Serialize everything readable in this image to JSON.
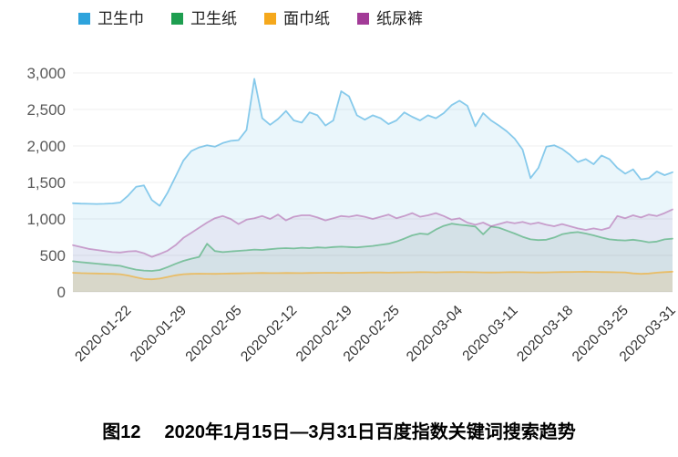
{
  "figure": {
    "caption_label": "图12",
    "caption_text": "2020年1月15日—3月31日百度指数关键词搜索趋势"
  },
  "axis_style": {
    "y_label_color": "#595959",
    "x_label_color": "#333333",
    "grid_color": "#efefef"
  },
  "chart_data": {
    "type": "area",
    "title": "",
    "xlabel": "",
    "ylabel": "",
    "x_start_date": "2020-01-15",
    "x_end_date": "2020-03-31",
    "x_tick_labels": [
      "2020-01-22",
      "2020-01-29",
      "2020-02-05",
      "2020-02-12",
      "2020-02-19",
      "2020-02-25",
      "2020-03-04",
      "2020-03-11",
      "2020-03-18",
      "2020-03-25",
      "2020-03-31"
    ],
    "x_tick_indices": [
      7,
      14,
      21,
      28,
      35,
      41,
      49,
      56,
      63,
      70,
      76
    ],
    "ylim": [
      0,
      3000
    ],
    "y_ticks": [
      0,
      500,
      1000,
      1500,
      2000,
      2500,
      3000
    ],
    "y_tick_labels": [
      "0",
      "500",
      "1,000",
      "1,500",
      "2,000",
      "2,500",
      "3,000"
    ],
    "grid": true,
    "legend_position": "top-left",
    "series": [
      {
        "name": "卫生巾",
        "semantic": "sanitary-napkin",
        "color": "#2EA3DC",
        "line_color": "rgba(46,163,220,0.55)",
        "fill_color": "rgba(46,163,220,0.10)",
        "values": [
          1215,
          1210,
          1208,
          1205,
          1208,
          1212,
          1225,
          1320,
          1440,
          1460,
          1260,
          1180,
          1360,
          1580,
          1800,
          1930,
          1980,
          2010,
          1990,
          2040,
          2070,
          2080,
          2220,
          2920,
          2380,
          2290,
          2370,
          2480,
          2350,
          2320,
          2460,
          2420,
          2280,
          2350,
          2750,
          2680,
          2420,
          2360,
          2420,
          2380,
          2300,
          2350,
          2460,
          2400,
          2350,
          2420,
          2380,
          2450,
          2560,
          2620,
          2550,
          2270,
          2450,
          2350,
          2280,
          2200,
          2100,
          1950,
          1560,
          1700,
          1990,
          2010,
          1960,
          1880,
          1780,
          1820,
          1750,
          1870,
          1820,
          1700,
          1620,
          1680,
          1540,
          1560,
          1650,
          1600,
          1640
        ]
      },
      {
        "name": "卫生纸",
        "semantic": "toilet-paper",
        "color": "#1E9E50",
        "line_color": "rgba(30,158,80,0.50)",
        "fill_color": "rgba(30,158,80,0.08)",
        "values": [
          420,
          408,
          398,
          388,
          378,
          368,
          358,
          330,
          305,
          292,
          288,
          300,
          340,
          385,
          425,
          455,
          480,
          660,
          560,
          545,
          555,
          562,
          570,
          580,
          575,
          585,
          595,
          600,
          595,
          605,
          600,
          610,
          605,
          615,
          620,
          615,
          610,
          620,
          630,
          645,
          660,
          690,
          730,
          775,
          800,
          790,
          855,
          905,
          935,
          920,
          910,
          895,
          790,
          895,
          880,
          840,
          800,
          755,
          720,
          710,
          715,
          745,
          790,
          810,
          820,
          800,
          775,
          745,
          720,
          710,
          705,
          715,
          700,
          680,
          690,
          720,
          730
        ]
      },
      {
        "name": "面巾纸",
        "semantic": "facial-tissue",
        "color": "#F5A81C",
        "line_color": "rgba(245,168,28,0.60)",
        "fill_color": "rgba(245,168,28,0.15)",
        "values": [
          262,
          258,
          255,
          252,
          250,
          247,
          243,
          225,
          200,
          178,
          172,
          182,
          205,
          228,
          242,
          248,
          250,
          249,
          248,
          250,
          252,
          254,
          256,
          258,
          260,
          258,
          257,
          260,
          259,
          258,
          260,
          261,
          263,
          262,
          260,
          262,
          263,
          265,
          267,
          266,
          264,
          266,
          267,
          269,
          271,
          270,
          268,
          270,
          271,
          273,
          271,
          270,
          268,
          266,
          268,
          270,
          271,
          270,
          268,
          266,
          268,
          270,
          272,
          273,
          275,
          277,
          275,
          273,
          271,
          269,
          267,
          254,
          247,
          252,
          264,
          271,
          277
        ]
      },
      {
        "name": "纸尿裤",
        "semantic": "diaper",
        "color": "#A23B97",
        "line_color": "rgba(162,59,151,0.45)",
        "fill_color": "rgba(162,59,151,0.07)",
        "values": [
          640,
          615,
          590,
          575,
          560,
          545,
          540,
          555,
          560,
          530,
          480,
          520,
          565,
          640,
          740,
          810,
          880,
          950,
          1010,
          1040,
          1000,
          930,
          990,
          1010,
          1040,
          1000,
          1060,
          980,
          1030,
          1050,
          1050,
          1020,
          980,
          1010,
          1040,
          1030,
          1050,
          1030,
          1000,
          1030,
          1060,
          1010,
          1040,
          1080,
          1030,
          1050,
          1080,
          1040,
          990,
          1010,
          950,
          920,
          950,
          900,
          930,
          960,
          940,
          960,
          930,
          950,
          920,
          900,
          930,
          900,
          870,
          850,
          870,
          850,
          880,
          1040,
          1010,
          1050,
          1020,
          1060,
          1040,
          1080,
          1130
        ]
      }
    ]
  }
}
